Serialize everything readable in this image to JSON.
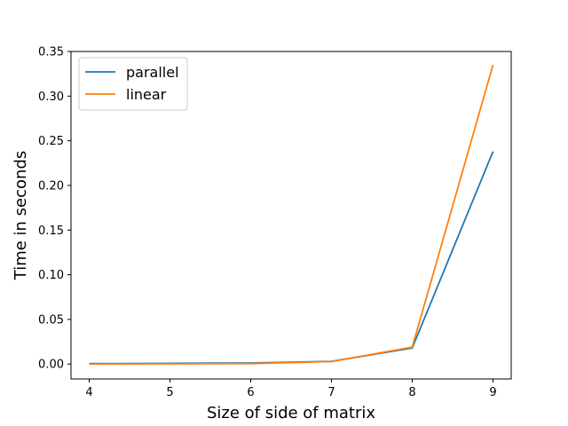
{
  "chart_data": {
    "type": "line",
    "title": "",
    "xlabel": "Size of side of matrix",
    "ylabel": "Time in seconds",
    "x": [
      4,
      5,
      6,
      7,
      8,
      9
    ],
    "xlim": [
      3.775,
      9.225
    ],
    "ylim": [
      -0.0167,
      0.35
    ],
    "xticks": [
      "4",
      "5",
      "6",
      "7",
      "8",
      "9"
    ],
    "yticks": [
      "0.00",
      "0.05",
      "0.10",
      "0.15",
      "0.20",
      "0.25",
      "0.30",
      "0.35"
    ],
    "grid": false,
    "legend_position": "top-left",
    "series": [
      {
        "name": "parallel",
        "color": "#1f77b4",
        "values": [
          0.0005,
          0.0008,
          0.0012,
          0.003,
          0.018,
          0.238
        ]
      },
      {
        "name": "linear",
        "color": "#ff7f0e",
        "values": [
          0.0001,
          0.0002,
          0.0005,
          0.0028,
          0.019,
          0.335
        ]
      }
    ]
  }
}
